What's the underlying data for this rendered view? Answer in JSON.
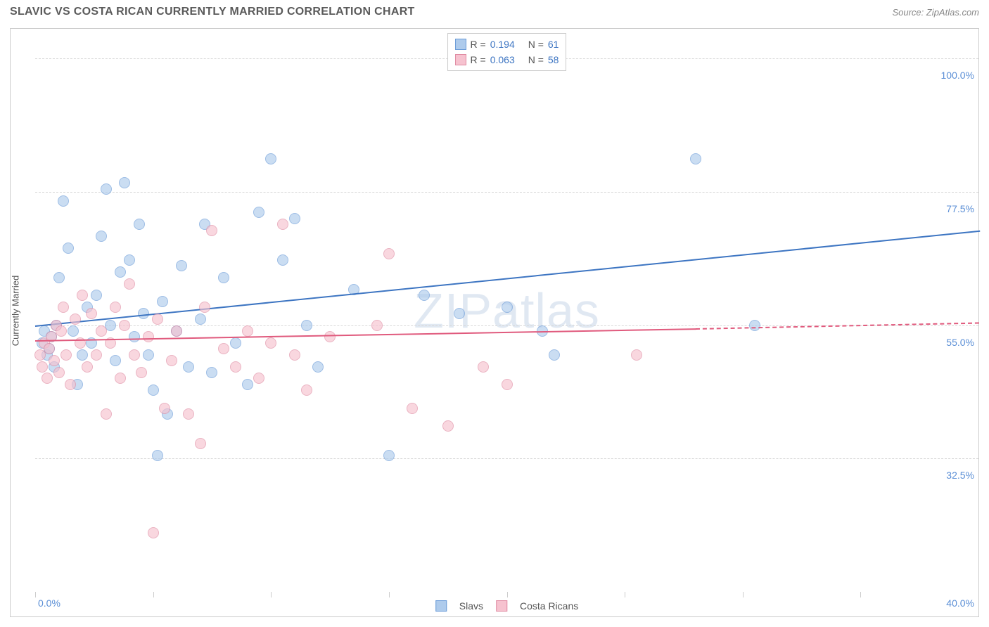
{
  "header": {
    "title": "SLAVIC VS COSTA RICAN CURRENTLY MARRIED CORRELATION CHART",
    "source": "Source: ZipAtlas.com"
  },
  "chart": {
    "type": "scatter",
    "ylabel": "Currently Married",
    "watermark": "ZIPatlas",
    "background_color": "#ffffff",
    "grid_color": "#d8d8d8",
    "axis_color": "#cccccc",
    "xlim": [
      0,
      40
    ],
    "ylim": [
      10,
      105
    ],
    "x_ticks_minor": [
      0,
      5,
      10,
      15,
      20,
      25,
      30,
      35,
      40
    ],
    "x_tick_labels": {
      "left": "0.0%",
      "right": "40.0%"
    },
    "y_gridlines": [
      32.5,
      55.0,
      77.5,
      100.0
    ],
    "y_tick_labels": [
      "32.5%",
      "55.0%",
      "77.5%",
      "100.0%"
    ],
    "tick_label_color": "#5b8fd6",
    "marker_radius": 8,
    "marker_border_width": 1,
    "series": [
      {
        "name": "Slavs",
        "legend_label": "Slavs",
        "fill_color": "#aecbec",
        "fill_opacity": 0.65,
        "stroke_color": "#6a9bd8",
        "line_color": "#3d75c2",
        "R": "0.194",
        "N": "61",
        "trend": {
          "x1": 0,
          "y1": 55,
          "x2": 40,
          "y2": 71,
          "dash_from_x": 40
        },
        "points": [
          [
            0.3,
            52
          ],
          [
            0.4,
            54
          ],
          [
            0.5,
            50
          ],
          [
            0.6,
            51
          ],
          [
            0.7,
            53
          ],
          [
            0.8,
            48
          ],
          [
            0.9,
            55
          ],
          [
            1.0,
            63
          ],
          [
            1.2,
            76
          ],
          [
            1.4,
            68
          ],
          [
            1.6,
            54
          ],
          [
            1.8,
            45
          ],
          [
            2.0,
            50
          ],
          [
            2.2,
            58
          ],
          [
            2.4,
            52
          ],
          [
            2.6,
            60
          ],
          [
            2.8,
            70
          ],
          [
            3.0,
            78
          ],
          [
            3.2,
            55
          ],
          [
            3.4,
            49
          ],
          [
            3.6,
            64
          ],
          [
            3.8,
            79
          ],
          [
            4.0,
            66
          ],
          [
            4.2,
            53
          ],
          [
            4.4,
            72
          ],
          [
            4.6,
            57
          ],
          [
            4.8,
            50
          ],
          [
            5.0,
            44
          ],
          [
            5.2,
            33
          ],
          [
            5.4,
            59
          ],
          [
            5.6,
            40
          ],
          [
            6.0,
            54
          ],
          [
            6.2,
            65
          ],
          [
            6.5,
            48
          ],
          [
            7.0,
            56
          ],
          [
            7.2,
            72
          ],
          [
            7.5,
            47
          ],
          [
            8.0,
            63
          ],
          [
            8.5,
            52
          ],
          [
            9.0,
            45
          ],
          [
            9.5,
            74
          ],
          [
            10.0,
            83
          ],
          [
            10.5,
            66
          ],
          [
            11.0,
            73
          ],
          [
            11.5,
            55
          ],
          [
            12.0,
            48
          ],
          [
            13.5,
            61
          ],
          [
            15.0,
            33
          ],
          [
            16.5,
            60
          ],
          [
            18.0,
            57
          ],
          [
            20.0,
            58
          ],
          [
            21.5,
            54
          ],
          [
            22.0,
            50
          ],
          [
            28.0,
            83
          ],
          [
            30.5,
            55
          ]
        ]
      },
      {
        "name": "Costa Ricans",
        "legend_label": "Costa Ricans",
        "fill_color": "#f6c2cf",
        "fill_opacity": 0.65,
        "stroke_color": "#e08ba2",
        "line_color": "#e05a7d",
        "R": "0.063",
        "N": "58",
        "trend": {
          "x1": 0,
          "y1": 52.5,
          "x2": 28,
          "y2": 54.5,
          "dash_from_x": 28,
          "dash_to_x": 40,
          "dash_to_y": 55.5
        },
        "points": [
          [
            0.2,
            50
          ],
          [
            0.3,
            48
          ],
          [
            0.4,
            52
          ],
          [
            0.5,
            46
          ],
          [
            0.6,
            51
          ],
          [
            0.7,
            53
          ],
          [
            0.8,
            49
          ],
          [
            0.9,
            55
          ],
          [
            1.0,
            47
          ],
          [
            1.1,
            54
          ],
          [
            1.2,
            58
          ],
          [
            1.3,
            50
          ],
          [
            1.5,
            45
          ],
          [
            1.7,
            56
          ],
          [
            1.9,
            52
          ],
          [
            2.0,
            60
          ],
          [
            2.2,
            48
          ],
          [
            2.4,
            57
          ],
          [
            2.6,
            50
          ],
          [
            2.8,
            54
          ],
          [
            3.0,
            40
          ],
          [
            3.2,
            52
          ],
          [
            3.4,
            58
          ],
          [
            3.6,
            46
          ],
          [
            3.8,
            55
          ],
          [
            4.0,
            62
          ],
          [
            4.2,
            50
          ],
          [
            4.5,
            47
          ],
          [
            4.8,
            53
          ],
          [
            5.0,
            20
          ],
          [
            5.2,
            56
          ],
          [
            5.5,
            41
          ],
          [
            5.8,
            49
          ],
          [
            6.0,
            54
          ],
          [
            6.5,
            40
          ],
          [
            7.0,
            35
          ],
          [
            7.2,
            58
          ],
          [
            7.5,
            71
          ],
          [
            8.0,
            51
          ],
          [
            8.5,
            48
          ],
          [
            9.0,
            54
          ],
          [
            9.5,
            46
          ],
          [
            10.0,
            52
          ],
          [
            10.5,
            72
          ],
          [
            11.0,
            50
          ],
          [
            11.5,
            44
          ],
          [
            12.5,
            53
          ],
          [
            14.5,
            55
          ],
          [
            15.0,
            67
          ],
          [
            16.0,
            41
          ],
          [
            17.5,
            38
          ],
          [
            19.0,
            48
          ],
          [
            20.0,
            45
          ],
          [
            25.5,
            50
          ]
        ]
      }
    ],
    "legend_top": {
      "rows": [
        {
          "swatch_fill": "#aecbec",
          "swatch_border": "#6a9bd8",
          "R_label": "R =",
          "R_val": "0.194",
          "N_label": "N =",
          "N_val": "61"
        },
        {
          "swatch_fill": "#f6c2cf",
          "swatch_border": "#e08ba2",
          "R_label": "R =",
          "R_val": "0.063",
          "N_label": "N =",
          "N_val": "58"
        }
      ]
    },
    "legend_bottom": [
      {
        "swatch_fill": "#aecbec",
        "swatch_border": "#6a9bd8",
        "label": "Slavs"
      },
      {
        "swatch_fill": "#f6c2cf",
        "swatch_border": "#e08ba2",
        "label": "Costa Ricans"
      }
    ]
  }
}
